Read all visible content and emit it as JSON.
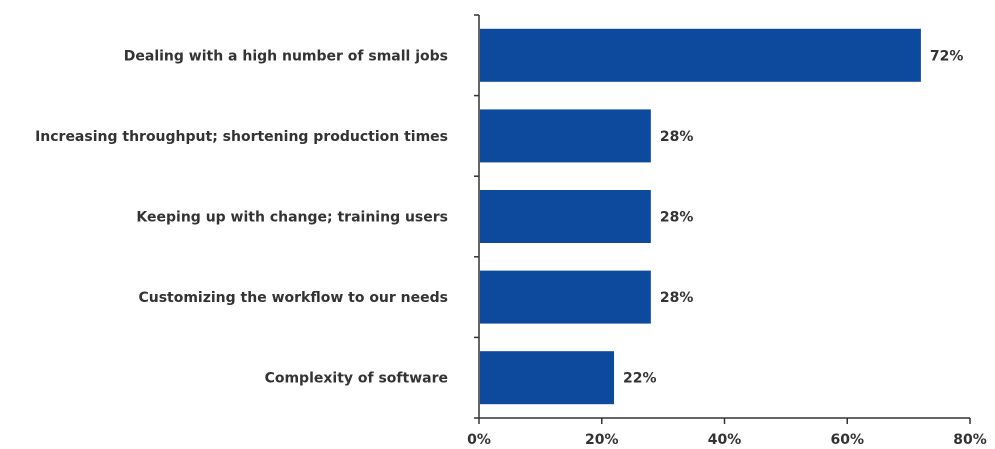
{
  "chart_data": {
    "type": "bar",
    "orientation": "horizontal",
    "categories": [
      "Dealing with a high number of small jobs",
      "Increasing throughput; shortening production times",
      "Keeping up with change; training users",
      "Customizing the workflow to our needs",
      "Complexity of software"
    ],
    "values": [
      72,
      28,
      28,
      28,
      22
    ],
    "data_labels": [
      "72%",
      "28%",
      "28%",
      "28%",
      "22%"
    ],
    "title": "",
    "xlabel": "",
    "ylabel": "",
    "xlim": [
      0,
      80
    ],
    "x_ticks": [
      0,
      20,
      40,
      60,
      80
    ],
    "x_tick_labels": [
      "0%",
      "20%",
      "40%",
      "60%",
      "80%"
    ],
    "grid": false,
    "bar_color": "#0d4a9e",
    "text_color": "#333333",
    "axis_color": "#333333"
  }
}
